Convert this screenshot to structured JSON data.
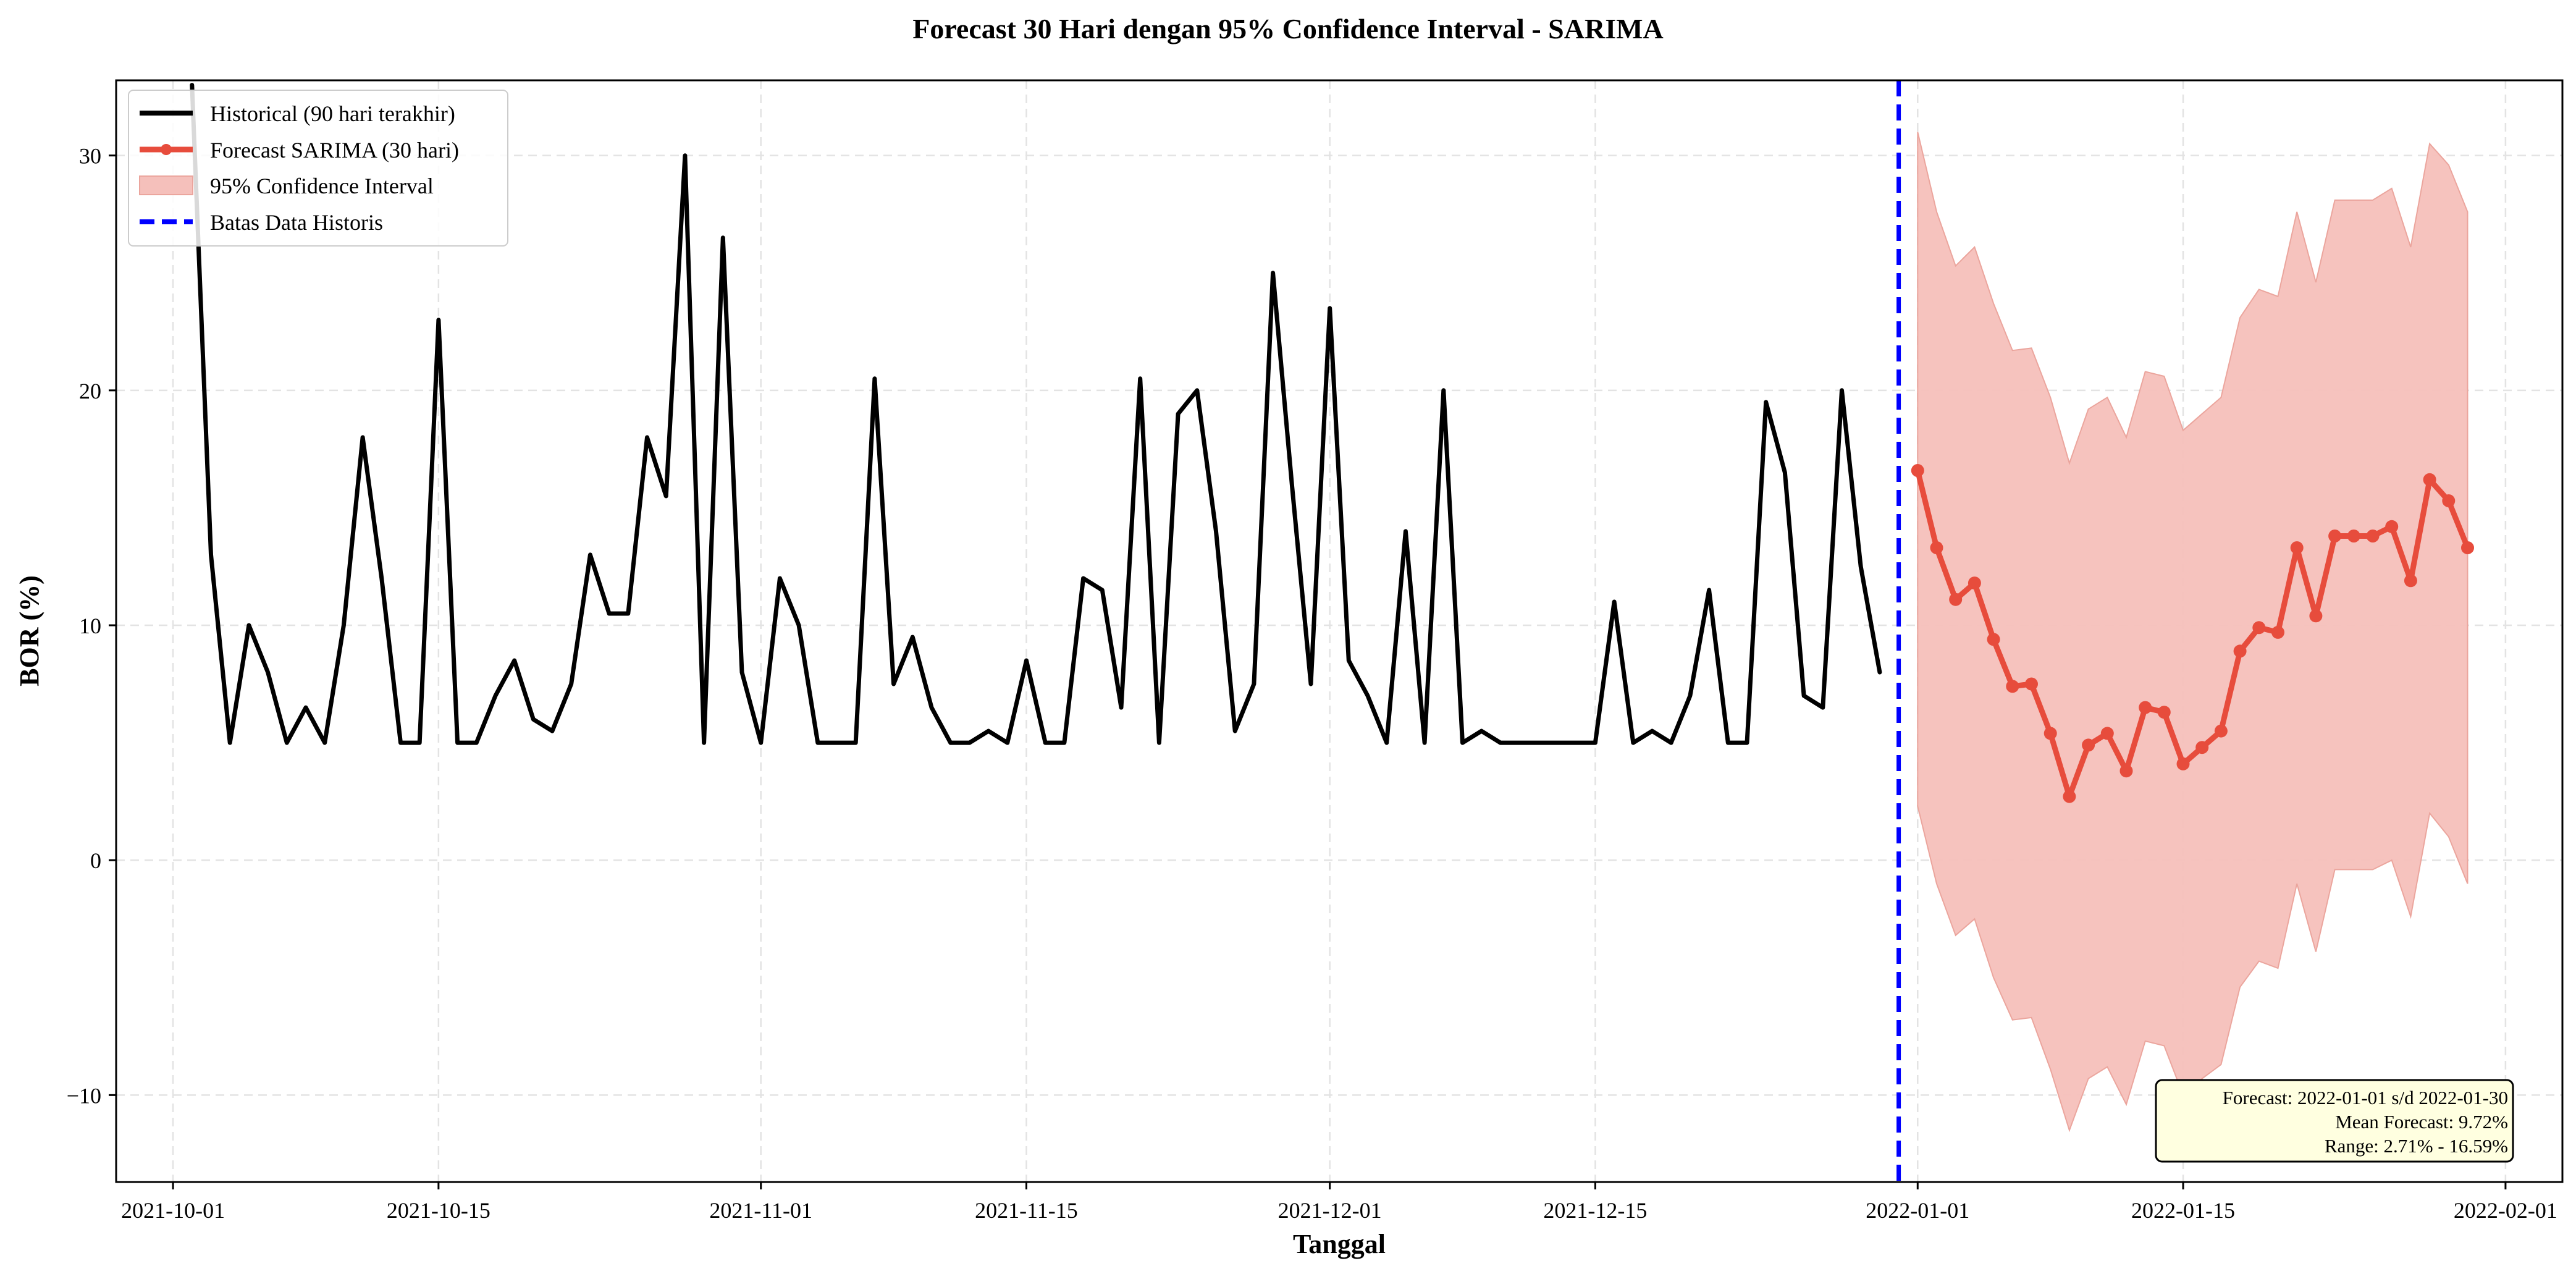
{
  "chart_data": {
    "type": "line",
    "title": "Forecast 30 Hari dengan 95% Confidence Interval - SARIMA",
    "xlabel": "Tanggal",
    "ylabel": "BOR (%)",
    "x_range": [
      "2021-09-28",
      "2022-02-04"
    ],
    "ylim": [
      -13.7,
      33.2
    ],
    "x_ticks": [
      "2021-10-01",
      "2021-10-15",
      "2021-11-01",
      "2021-11-15",
      "2021-12-01",
      "2021-12-15",
      "2022-01-01",
      "2022-01-15",
      "2022-02-01"
    ],
    "y_ticks": [
      -10,
      0,
      10,
      20,
      30
    ],
    "grid": true,
    "legend_position": "top-left",
    "colors": {
      "historical": "#000000",
      "forecast": "#e74c3c",
      "ci_fill": "#f5c0bb",
      "boundary": "#0000ff",
      "annotation_bg": "#ffffe0"
    },
    "series": [
      {
        "name": "Historical (90 hari terakhir)",
        "start_date": "2021-10-02",
        "values": [
          33.0,
          13.0,
          5.0,
          10.0,
          8.0,
          5.0,
          6.5,
          5.0,
          10.0,
          18.0,
          12.0,
          5.0,
          5.0,
          23.0,
          5.0,
          5.0,
          7.0,
          8.5,
          6.0,
          5.5,
          7.5,
          13.0,
          10.5,
          10.5,
          18.0,
          15.5,
          30.0,
          5.0,
          26.5,
          8.0,
          5.0,
          12.0,
          10.0,
          5.0,
          5.0,
          5.0,
          20.5,
          7.5,
          9.5,
          6.5,
          5.0,
          5.0,
          5.5,
          5.0,
          8.5,
          5.0,
          5.0,
          12.0,
          11.5,
          6.5,
          20.5,
          5.0,
          19.0,
          20.0,
          14.0,
          5.5,
          7.5,
          25.0,
          16.0,
          7.5,
          23.5,
          8.5,
          7.0,
          5.0,
          14.0,
          5.0,
          20.0,
          5.0,
          5.5,
          5.0,
          5.0,
          5.0,
          5.0,
          5.0,
          5.0,
          11.0,
          5.0,
          5.5,
          5.0,
          7.0,
          11.5,
          5.0,
          5.0,
          19.5,
          16.5,
          7.0,
          6.5,
          20.0,
          12.5,
          8.0
        ]
      },
      {
        "name": "Forecast SARIMA (30 hari)",
        "start_date": "2022-01-01",
        "values": [
          16.59,
          13.3,
          11.1,
          11.8,
          9.4,
          7.4,
          7.5,
          5.4,
          2.71,
          4.9,
          5.4,
          3.8,
          6.5,
          6.3,
          4.1,
          4.8,
          5.5,
          8.9,
          9.9,
          9.7,
          13.3,
          10.4,
          13.8,
          13.8,
          13.8,
          14.2,
          11.9,
          16.2,
          15.3,
          13.3
        ]
      },
      {
        "name": "95% Confidence Interval",
        "start_date": "2022-01-01",
        "lower": [
          2.3,
          -1.0,
          -3.2,
          -2.5,
          -5.0,
          -6.8,
          -6.7,
          -8.9,
          -11.5,
          -9.3,
          -8.8,
          -10.4,
          -7.7,
          -7.9,
          -10.0,
          -9.3,
          -8.7,
          -5.4,
          -4.3,
          -4.6,
          -1.0,
          -3.9,
          -0.4,
          -0.4,
          -0.4,
          0.0,
          -2.4,
          2.0,
          1.0,
          -1.0
        ],
        "upper": [
          31.0,
          27.6,
          25.3,
          26.1,
          23.7,
          21.7,
          21.8,
          19.7,
          16.9,
          19.2,
          19.7,
          18.0,
          20.8,
          20.6,
          18.3,
          19.0,
          19.7,
          23.1,
          24.3,
          24.0,
          27.6,
          24.6,
          28.1,
          28.1,
          28.1,
          28.6,
          26.1,
          30.5,
          29.6,
          27.6
        ]
      },
      {
        "name": "Batas Data Historis",
        "x": "2021-12-31"
      }
    ],
    "annotation": {
      "line1": "Forecast: 2022-01-01 s/d 2022-01-30",
      "line2": "Mean Forecast: 9.72%",
      "line3": "Range: 2.71% - 16.59%"
    }
  }
}
